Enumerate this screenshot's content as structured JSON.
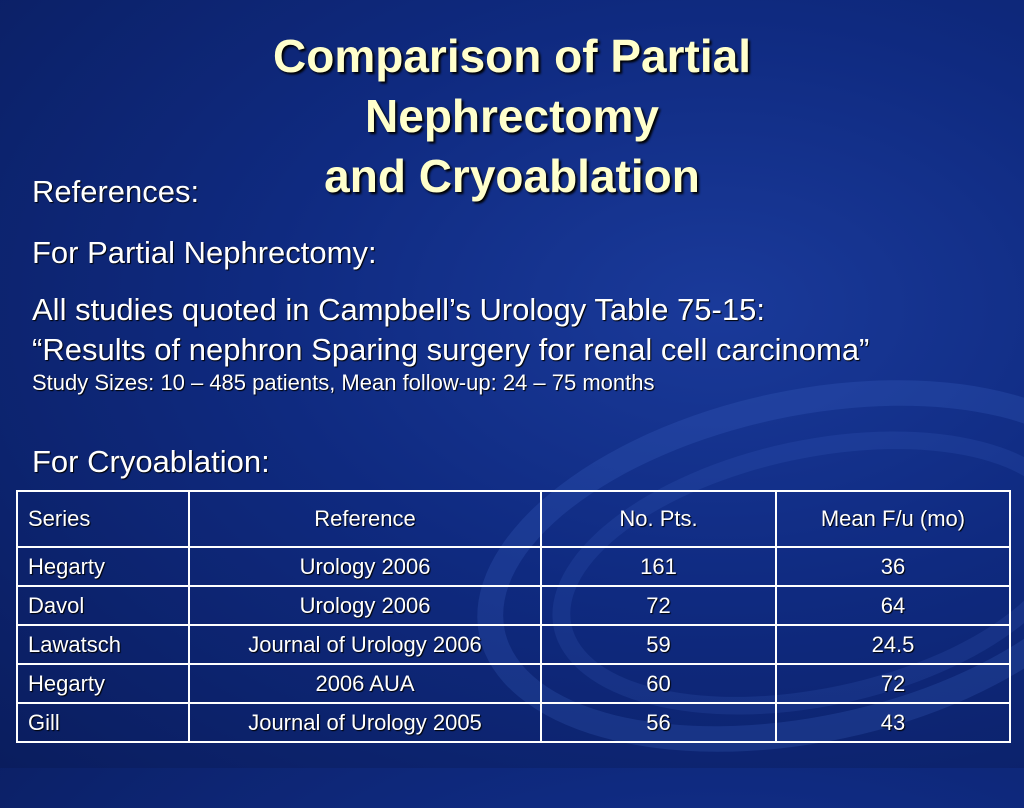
{
  "slide": {
    "title_lines": [
      "Comparison of Partial",
      "Nephrectomy",
      "and Cryoablation"
    ],
    "references_label": "References:",
    "partial_nephrectomy_label": "For Partial Nephrectomy:",
    "studies_line1": "All studies quoted in Campbell’s Urology Table 75-15:",
    "studies_line2": "“Results of nephron Sparing surgery for renal cell carcinoma”",
    "study_sizes": "Study Sizes: 10 – 485 patients, Mean follow-up: 24 – 75 months",
    "cryoablation_label": "For Cryoablation:"
  },
  "table": {
    "headers": [
      "Series",
      "Reference",
      "No. Pts.",
      "Mean F/u (mo)"
    ],
    "rows": [
      [
        "Hegarty",
        "Urology 2006",
        "161",
        "36"
      ],
      [
        "Davol",
        "Urology 2006",
        "72",
        "64"
      ],
      [
        "Lawatsch",
        "Journal of Urology 2006",
        "59",
        "24.5"
      ],
      [
        "Hegarty",
        "2006 AUA",
        "60",
        "72"
      ],
      [
        "Gill",
        "Journal of Urology 2005",
        "56",
        "43"
      ]
    ]
  },
  "colors": {
    "background": "#0f2a80",
    "title": "#ffffcc",
    "text": "#ffffff"
  }
}
